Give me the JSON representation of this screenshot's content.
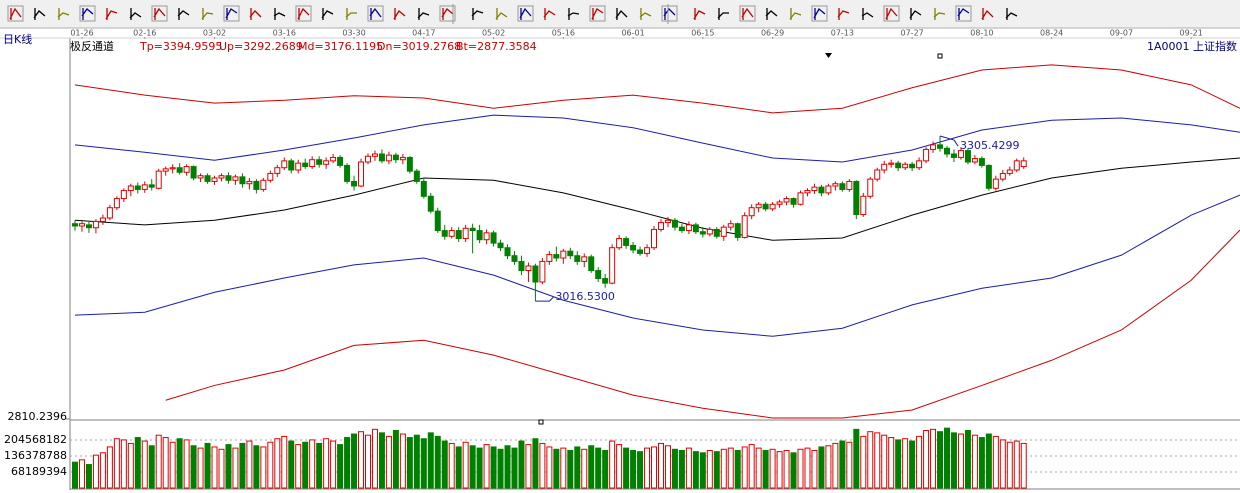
{
  "header": {
    "period": "日K线",
    "indicator": "极反通道",
    "legend": [
      "Tp=3394.9595",
      "Up=3292.2689",
      "Md=3176.1195",
      "Dn=3019.2768",
      "Bt=2877.3584"
    ],
    "symbol": "1A0001  上证指数"
  },
  "chart_data": [
    {
      "type": "candlestick",
      "up_color": "#e00000",
      "down_color": "#008000",
      "xlim": [
        0,
        167
      ],
      "xticks": [
        {
          "value": 1,
          "label": "01-26"
        },
        {
          "value": 10,
          "label": "02-16"
        },
        {
          "value": 20,
          "label": "03-02"
        },
        {
          "value": 30,
          "label": "03-16"
        },
        {
          "value": 40,
          "label": "03-30"
        },
        {
          "value": 50,
          "label": "04-17"
        },
        {
          "value": 60,
          "label": "05-02"
        },
        {
          "value": 70,
          "label": "05-16"
        },
        {
          "value": 80,
          "label": "06-01"
        },
        {
          "value": 90,
          "label": "06-15"
        },
        {
          "value": 100,
          "label": "06-29"
        },
        {
          "value": 110,
          "label": "07-13"
        },
        {
          "value": 120,
          "label": "07-27"
        },
        {
          "value": 130,
          "label": "08-10"
        },
        {
          "value": 140,
          "label": "08-24"
        },
        {
          "value": 150,
          "label": "09-07"
        },
        {
          "value": 160,
          "label": "09-21"
        }
      ],
      "ylim": [
        2810.2396,
        3473.5
      ],
      "yticks": [
        2810.2396
      ],
      "open": [
        3152,
        3148,
        3150,
        3145,
        3156,
        3162,
        3180,
        3196,
        3210,
        3218,
        3212,
        3220,
        3214,
        3244,
        3248,
        3250,
        3242,
        3252,
        3232,
        3236,
        3226,
        3232,
        3236,
        3228,
        3234,
        3222,
        3226,
        3212,
        3228,
        3240,
        3250,
        3262,
        3246,
        3258,
        3252,
        3264,
        3256,
        3262,
        3268,
        3254,
        3226,
        3218,
        3260,
        3270,
        3274,
        3262,
        3272,
        3264,
        3268,
        3244,
        3226,
        3200,
        3174,
        3140,
        3130,
        3140,
        3126,
        3144,
        3140,
        3124,
        3136,
        3118,
        3110,
        3096,
        3086,
        3070,
        3078,
        3050,
        3086,
        3098,
        3092,
        3104,
        3096,
        3086,
        3094,
        3070,
        3056,
        3048,
        3110,
        3126,
        3114,
        3106,
        3100,
        3110,
        3142,
        3154,
        3158,
        3146,
        3140,
        3150,
        3138,
        3134,
        3142,
        3130,
        3146,
        3152,
        3128,
        3166,
        3180,
        3186,
        3178,
        3186,
        3190,
        3196,
        3186,
        3206,
        3210,
        3216,
        3206,
        3218,
        3222,
        3212,
        3226,
        3168,
        3200,
        3230,
        3246,
        3256,
        3258,
        3250,
        3256,
        3250,
        3262,
        3282,
        3290,
        3284,
        3274,
        3268,
        3280,
        3260,
        3266,
        3254,
        3214,
        3230,
        3240,
        3246,
        3252
      ],
      "high": [
        3158,
        3156,
        3155,
        3160,
        3168,
        3185,
        3200,
        3214,
        3222,
        3224,
        3226,
        3230,
        3248,
        3252,
        3256,
        3258,
        3256,
        3254,
        3240,
        3240,
        3236,
        3240,
        3242,
        3238,
        3240,
        3232,
        3230,
        3232,
        3245,
        3255,
        3268,
        3266,
        3264,
        3266,
        3270,
        3270,
        3268,
        3274,
        3272,
        3258,
        3236,
        3266,
        3275,
        3280,
        3282,
        3278,
        3276,
        3274,
        3270,
        3248,
        3230,
        3206,
        3180,
        3150,
        3146,
        3146,
        3150,
        3152,
        3150,
        3142,
        3140,
        3124,
        3116,
        3104,
        3096,
        3084,
        3082,
        3092,
        3104,
        3112,
        3108,
        3110,
        3104,
        3100,
        3098,
        3076,
        3064,
        3116,
        3132,
        3130,
        3120,
        3112,
        3116,
        3148,
        3160,
        3164,
        3162,
        3152,
        3156,
        3154,
        3146,
        3146,
        3146,
        3150,
        3158,
        3154,
        3172,
        3186,
        3190,
        3190,
        3190,
        3194,
        3200,
        3198,
        3210,
        3214,
        3222,
        3220,
        3222,
        3226,
        3226,
        3230,
        3228,
        3206,
        3234,
        3250,
        3262,
        3264,
        3262,
        3260,
        3260,
        3268,
        3286,
        3296,
        3305.4299,
        3288,
        3282,
        3286,
        3284,
        3272,
        3270,
        3256,
        3236,
        3246,
        3252,
        3266,
        3268
      ],
      "low": [
        3140,
        3138,
        3136,
        3135,
        3150,
        3158,
        3176,
        3190,
        3200,
        3205,
        3206,
        3210,
        3212,
        3236,
        3240,
        3238,
        3236,
        3228,
        3225,
        3222,
        3220,
        3226,
        3222,
        3220,
        3215,
        3212,
        3205,
        3208,
        3224,
        3234,
        3246,
        3240,
        3240,
        3248,
        3248,
        3250,
        3248,
        3258,
        3250,
        3222,
        3210,
        3216,
        3256,
        3262,
        3258,
        3256,
        3258,
        3256,
        3240,
        3222,
        3196,
        3170,
        3136,
        3124,
        3126,
        3120,
        3120,
        3100,
        3118,
        3116,
        3112,
        3104,
        3090,
        3080,
        3062,
        3050,
        3016.53,
        3046,
        3080,
        3086,
        3082,
        3090,
        3080,
        3076,
        3066,
        3050,
        3040,
        3046,
        3106,
        3108,
        3100,
        3096,
        3094,
        3106,
        3138,
        3146,
        3140,
        3136,
        3134,
        3134,
        3128,
        3130,
        3126,
        3122,
        3140,
        3122,
        3126,
        3160,
        3172,
        3174,
        3174,
        3180,
        3184,
        3180,
        3184,
        3200,
        3204,
        3200,
        3202,
        3210,
        3208,
        3208,
        3160,
        3164,
        3196,
        3226,
        3240,
        3250,
        3244,
        3246,
        3244,
        3246,
        3258,
        3276,
        3278,
        3268,
        3260,
        3264,
        3256,
        3256,
        3250,
        3210,
        3210,
        3226,
        3236,
        3242,
        3248
      ],
      "close": [
        3148,
        3152,
        3145,
        3156,
        3162,
        3180,
        3196,
        3210,
        3218,
        3212,
        3220,
        3216,
        3244,
        3248,
        3250,
        3242,
        3252,
        3232,
        3236,
        3226,
        3232,
        3236,
        3228,
        3234,
        3222,
        3226,
        3212,
        3228,
        3240,
        3250,
        3262,
        3246,
        3258,
        3252,
        3264,
        3256,
        3262,
        3268,
        3254,
        3226,
        3218,
        3260,
        3270,
        3274,
        3262,
        3272,
        3264,
        3268,
        3244,
        3226,
        3200,
        3174,
        3140,
        3130,
        3140,
        3126,
        3144,
        3140,
        3124,
        3136,
        3118,
        3110,
        3096,
        3086,
        3070,
        3078,
        3050,
        3086,
        3098,
        3092,
        3104,
        3096,
        3086,
        3094,
        3070,
        3056,
        3048,
        3110,
        3126,
        3114,
        3106,
        3100,
        3110,
        3142,
        3154,
        3158,
        3146,
        3140,
        3150,
        3138,
        3134,
        3142,
        3130,
        3146,
        3152,
        3128,
        3166,
        3180,
        3186,
        3178,
        3186,
        3190,
        3196,
        3186,
        3206,
        3210,
        3216,
        3206,
        3218,
        3222,
        3212,
        3226,
        3168,
        3200,
        3230,
        3246,
        3256,
        3258,
        3250,
        3256,
        3250,
        3262,
        3282,
        3290,
        3284,
        3274,
        3268,
        3280,
        3260,
        3266,
        3254,
        3214,
        3230,
        3240,
        3246,
        3262,
        3262
      ],
      "series": [
        {
          "color": "#cc0000",
          "x": [
            0,
            10,
            20,
            30,
            40,
            50,
            60,
            70,
            80,
            90,
            100,
            110,
            120,
            130,
            140,
            150,
            160,
            167
          ],
          "values": [
            3395,
            3377,
            3363,
            3368,
            3376,
            3372,
            3354,
            3368,
            3377,
            3363,
            3346,
            3354,
            3390,
            3421,
            3430,
            3421,
            3395,
            3354
          ]
        },
        {
          "color": "#1c1ca8",
          "x": [
            0,
            10,
            20,
            30,
            40,
            50,
            60,
            70,
            80,
            90,
            100,
            110,
            120,
            130,
            140,
            150,
            160,
            167
          ],
          "values": [
            3290,
            3277,
            3263,
            3281,
            3302,
            3325,
            3342,
            3337,
            3320,
            3293,
            3267,
            3260,
            3281,
            3316,
            3333,
            3337,
            3325,
            3312
          ]
        },
        {
          "color": "#000000",
          "x": [
            0,
            10,
            20,
            30,
            40,
            50,
            60,
            70,
            80,
            90,
            100,
            110,
            120,
            130,
            140,
            150,
            160,
            167
          ],
          "values": [
            3158,
            3150,
            3158,
            3176,
            3202,
            3232,
            3228,
            3206,
            3176,
            3144,
            3123,
            3127,
            3167,
            3202,
            3232,
            3249,
            3260,
            3267
          ]
        },
        {
          "color": "#1c1ca8",
          "x": [
            0,
            10,
            20,
            30,
            40,
            50,
            60,
            70,
            80,
            90,
            100,
            110,
            120,
            130,
            140,
            150,
            160,
            167
          ],
          "values": [
            2992,
            2997,
            3032,
            3057,
            3080,
            3092,
            3062,
            3018,
            2987,
            2966,
            2955,
            2969,
            3010,
            3039,
            3057,
            3097,
            3167,
            3202
          ]
        },
        {
          "color": "#cc0000",
          "x": [
            13,
            20,
            30,
            40,
            50,
            60,
            70,
            80,
            90,
            100,
            110,
            120,
            130,
            140,
            150,
            160,
            167
          ],
          "values": [
            2843,
            2869,
            2896,
            2939,
            2948,
            2922,
            2887,
            2852,
            2829,
            2812,
            2812,
            2826,
            2869,
            2913,
            2966,
            3053,
            3141
          ]
        }
      ],
      "annotations": [
        {
          "text": "3305.4299",
          "x": 124,
          "y": 3305.4299
        },
        {
          "text": "3016.5300",
          "x": 66,
          "y": 3016.53
        }
      ]
    },
    {
      "type": "bar",
      "grid": true,
      "ylim": [
        0,
        272757576
      ],
      "yticks": [
        68189394,
        136378788,
        204568182
      ],
      "values": [
        110000000,
        120000000,
        100000000,
        140000000,
        150000000,
        175000000,
        210000000,
        205000000,
        190000000,
        215000000,
        200000000,
        180000000,
        225000000,
        215000000,
        195000000,
        210000000,
        205000000,
        180000000,
        170000000,
        190000000,
        175000000,
        165000000,
        185000000,
        170000000,
        190000000,
        200000000,
        180000000,
        175000000,
        195000000,
        210000000,
        220000000,
        200000000,
        185000000,
        195000000,
        205000000,
        190000000,
        210000000,
        200000000,
        185000000,
        215000000,
        230000000,
        240000000,
        225000000,
        250000000,
        235000000,
        220000000,
        245000000,
        230000000,
        215000000,
        225000000,
        210000000,
        235000000,
        220000000,
        200000000,
        190000000,
        175000000,
        195000000,
        180000000,
        170000000,
        185000000,
        175000000,
        165000000,
        180000000,
        170000000,
        200000000,
        185000000,
        210000000,
        190000000,
        175000000,
        165000000,
        170000000,
        160000000,
        175000000,
        165000000,
        180000000,
        170000000,
        160000000,
        200000000,
        185000000,
        170000000,
        160000000,
        155000000,
        170000000,
        175000000,
        190000000,
        180000000,
        165000000,
        160000000,
        170000000,
        155000000,
        150000000,
        160000000,
        155000000,
        165000000,
        170000000,
        160000000,
        175000000,
        185000000,
        170000000,
        160000000,
        165000000,
        155000000,
        160000000,
        150000000,
        165000000,
        170000000,
        160000000,
        175000000,
        180000000,
        190000000,
        200000000,
        195000000,
        250000000,
        220000000,
        240000000,
        235000000,
        225000000,
        215000000,
        205000000,
        210000000,
        200000000,
        220000000,
        245000000,
        250000000,
        240000000,
        255000000,
        235000000,
        230000000,
        245000000,
        225000000,
        215000000,
        230000000,
        220000000,
        205000000,
        195000000,
        200000000,
        190000000
      ]
    }
  ]
}
